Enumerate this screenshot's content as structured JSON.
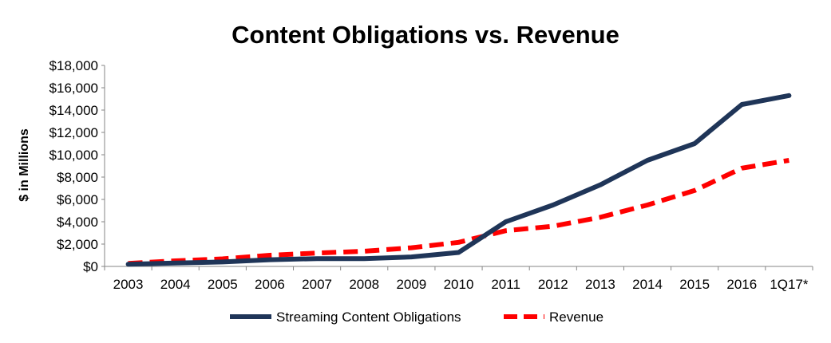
{
  "chart_data": {
    "type": "line",
    "title": "Content Obligations vs. Revenue",
    "xlabel": "",
    "ylabel": "$ in Millions",
    "categories": [
      "2003",
      "2004",
      "2005",
      "2006",
      "2007",
      "2008",
      "2009",
      "2010",
      "2011",
      "2012",
      "2013",
      "2014",
      "2015",
      "2016",
      "1Q17*"
    ],
    "ylim": [
      0,
      18000
    ],
    "yticks": [
      0,
      2000,
      4000,
      6000,
      8000,
      10000,
      12000,
      14000,
      16000,
      18000
    ],
    "ytick_labels": [
      "$0",
      "$2,000",
      "$4,000",
      "$6,000",
      "$8,000",
      "$10,000",
      "$12,000",
      "$14,000",
      "$16,000",
      "$18,000"
    ],
    "grid": false,
    "legend_position": "bottom",
    "series": [
      {
        "name": "Streaming Content Obligations",
        "color": "#1f3558",
        "style": "solid",
        "values": [
          200,
          300,
          400,
          600,
          700,
          700,
          850,
          1250,
          4000,
          5500,
          7300,
          9500,
          11000,
          14500,
          15300
        ]
      },
      {
        "name": "Revenue",
        "color": "#ff0000",
        "style": "dashed",
        "values": [
          270,
          500,
          680,
          1000,
          1200,
          1360,
          1670,
          2160,
          3200,
          3600,
          4400,
          5500,
          6800,
          8800,
          9500
        ]
      }
    ]
  }
}
